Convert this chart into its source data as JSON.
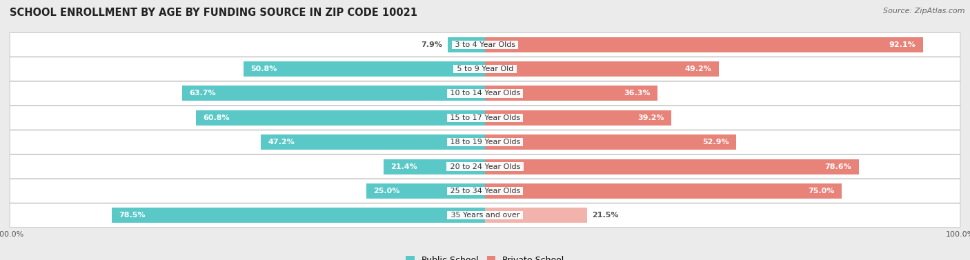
{
  "title": "SCHOOL ENROLLMENT BY AGE BY FUNDING SOURCE IN ZIP CODE 10021",
  "source": "Source: ZipAtlas.com",
  "categories": [
    "3 to 4 Year Olds",
    "5 to 9 Year Old",
    "10 to 14 Year Olds",
    "15 to 17 Year Olds",
    "18 to 19 Year Olds",
    "20 to 24 Year Olds",
    "25 to 34 Year Olds",
    "35 Years and over"
  ],
  "public_pct": [
    7.9,
    50.8,
    63.7,
    60.8,
    47.2,
    21.4,
    25.0,
    78.5
  ],
  "private_pct": [
    92.1,
    49.2,
    36.3,
    39.2,
    52.9,
    78.6,
    75.0,
    21.5
  ],
  "public_color": "#5BC8C8",
  "private_color": "#E8837A",
  "private_color_light": "#F2B3AD",
  "background_color": "#EBEBEB",
  "row_bg_color": "#FFFFFF",
  "row_bg_alt": "#F5F5F5",
  "label_color_dark": "#555555",
  "label_color_light": "#FFFFFF",
  "title_fontsize": 10.5,
  "source_fontsize": 8,
  "bar_label_fontsize": 8,
  "category_label_fontsize": 8,
  "legend_fontsize": 9,
  "axis_label_fontsize": 8
}
